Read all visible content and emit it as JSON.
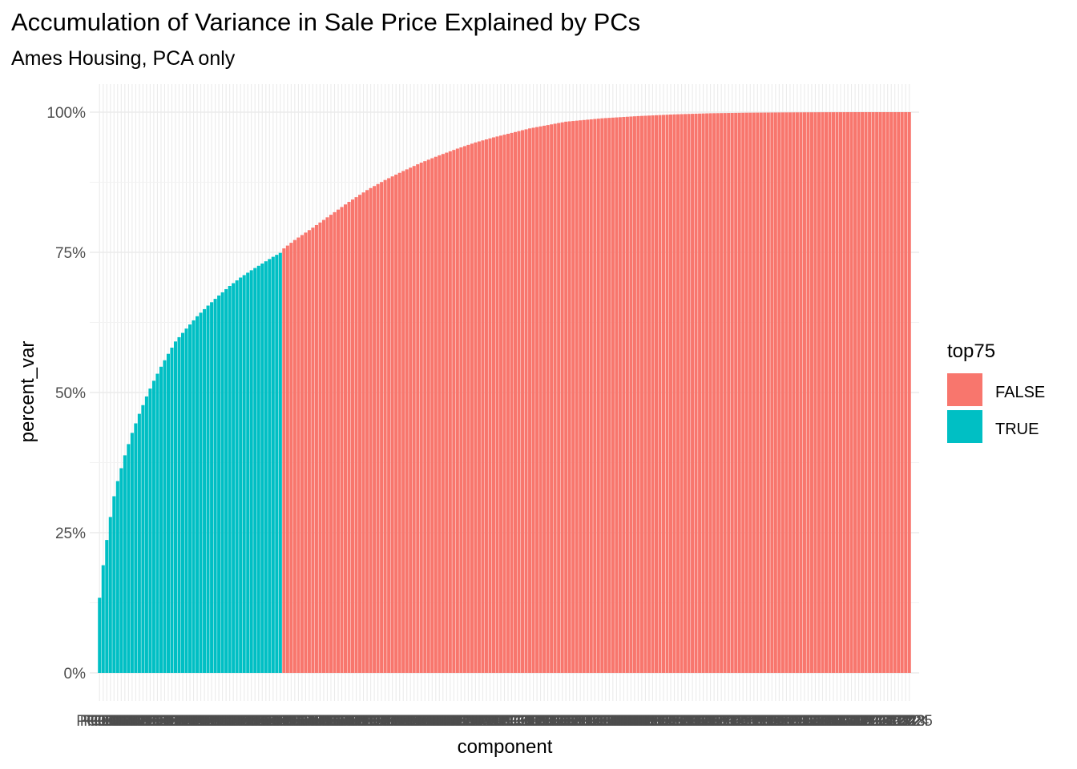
{
  "chart_data": {
    "type": "bar",
    "title": "Accumulation of Variance in Sale Price Explained by PCs",
    "subtitle": "Ames Housing, PCA only",
    "xlabel": "component",
    "ylabel": "percent_var",
    "ylim": [
      0,
      1
    ],
    "y_ticks": [
      "0%",
      "25%",
      "50%",
      "75%",
      "100%"
    ],
    "y_tick_values": [
      0,
      0.25,
      0.5,
      0.75,
      1.0
    ],
    "n_components": 225,
    "x_first_label": "PC001",
    "x_last_label": "PC225",
    "top75_cutoff_count": 51,
    "anchor_x": [
      1,
      2,
      3,
      4,
      5,
      6,
      8,
      10,
      12,
      14,
      16,
      18,
      20,
      22,
      25,
      28,
      31,
      34,
      37,
      40,
      43,
      46,
      49,
      51,
      52,
      55,
      60,
      65,
      70,
      75,
      80,
      85,
      90,
      95,
      100,
      105,
      110,
      115,
      120,
      125,
      130,
      135,
      140,
      145,
      150,
      160,
      170,
      180,
      190,
      200,
      210,
      225
    ],
    "anchor_percent_var": [
      0.134,
      0.192,
      0.237,
      0.278,
      0.315,
      0.342,
      0.388,
      0.428,
      0.462,
      0.493,
      0.521,
      0.546,
      0.569,
      0.591,
      0.614,
      0.636,
      0.655,
      0.673,
      0.69,
      0.705,
      0.718,
      0.73,
      0.742,
      0.749,
      0.757,
      0.772,
      0.794,
      0.817,
      0.84,
      0.861,
      0.879,
      0.895,
      0.91,
      0.923,
      0.935,
      0.946,
      0.955,
      0.963,
      0.971,
      0.977,
      0.983,
      0.986,
      0.989,
      0.991,
      0.993,
      0.996,
      0.998,
      0.999,
      0.9995,
      0.9998,
      1.0,
      1.0
    ],
    "legend": {
      "title": "top75",
      "entries": [
        {
          "label": "FALSE",
          "color": "#F8766D"
        },
        {
          "label": "TRUE",
          "color": "#00BFC4"
        }
      ]
    },
    "grid": true,
    "legend_position": "right"
  }
}
